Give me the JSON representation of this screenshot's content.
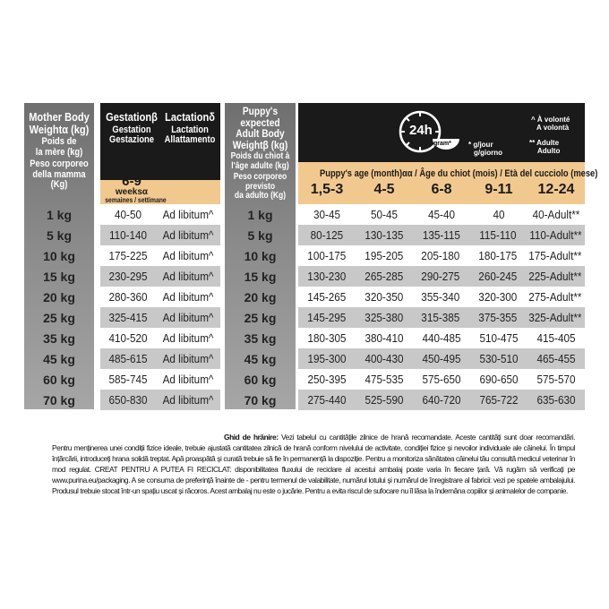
{
  "mother": {
    "title1": "Mother Body",
    "title2": "Weightα (kg)",
    "fr1": "Poids de",
    "fr2": "la mère (kg)",
    "it1": "Peso corporeo",
    "it2": "della mamma (Kg)"
  },
  "gestation": {
    "en": "Gestationβ",
    "fr": "Gestation",
    "it": "Gestazione",
    "duration": "6-9",
    "unit": "weeksα",
    "unit_fr_it": "semaines / settimane"
  },
  "lactation": {
    "en": "Lactationδ",
    "fr": "Lactation",
    "it": "Allattamento"
  },
  "puppy": {
    "t1": "Puppy's expected",
    "t2": "Adult Body",
    "t3": "Weightβ (kg)",
    "fr1": "Poids du chiot à",
    "fr2": "l'âge adulte (kg)",
    "it1": "Peso corporeo previsto",
    "it2": "da adulto (Kg)"
  },
  "legend": {
    "clock": "24h",
    "bowl": "gram*",
    "gjour": "* g/jour",
    "ggiorno": "g/giorno",
    "volonte": "^ À volonté",
    "volonta": "A volontà",
    "adulte": "** Adulte",
    "adulto": "Adulto"
  },
  "age_header": "Puppy's age (month)αα / Âge du chiot (mois) / Età del cucciolo (mese)",
  "ages": [
    "1,5-3",
    "4-5",
    "6-8",
    "9-11",
    "12-24"
  ],
  "weights": [
    "1 kg",
    "5 kg",
    "10 kg",
    "15 kg",
    "20 kg",
    "25 kg",
    "35 kg",
    "45 kg",
    "60 kg",
    "70 kg"
  ],
  "mother_rows": [
    [
      "40-50",
      "Ad libitum^"
    ],
    [
      "110-140",
      "Ad libitum^"
    ],
    [
      "175-225",
      "Ad libitum^"
    ],
    [
      "230-295",
      "Ad libitum^"
    ],
    [
      "280-360",
      "Ad libitum^"
    ],
    [
      "325-415",
      "Ad libitum^"
    ],
    [
      "410-520",
      "Ad libitum^"
    ],
    [
      "485-615",
      "Ad libitum^"
    ],
    [
      "585-745",
      "Ad libitum^"
    ],
    [
      "650-830",
      "Ad libitum^"
    ]
  ],
  "puppy_rows": [
    [
      "30-45",
      "50-45",
      "45-40",
      "40",
      "40-Adult**"
    ],
    [
      "80-125",
      "130-135",
      "135-115",
      "115-110",
      "110-Adult**"
    ],
    [
      "100-175",
      "195-205",
      "205-180",
      "180-175",
      "175-Adult**"
    ],
    [
      "130-230",
      "265-285",
      "290-275",
      "260-245",
      "225-Adult**"
    ],
    [
      "145-265",
      "320-350",
      "355-340",
      "320-300",
      "275-Adult**"
    ],
    [
      "145-295",
      "325-380",
      "315-385",
      "375-355",
      "325-Adult**"
    ],
    [
      "180-305",
      "380-410",
      "440-485",
      "510-475",
      "415-405"
    ],
    [
      "195-300",
      "400-430",
      "450-495",
      "530-510",
      "465-455"
    ],
    [
      "250-395",
      "475-535",
      "575-650",
      "690-650",
      "575-570"
    ],
    [
      "275-440",
      "525-590",
      "640-720",
      "765-722",
      "635-630"
    ]
  ],
  "footer": {
    "bold": "Ghid de hrănire:",
    "text": " Vezi tabelul cu cantitățile zilnice de hrană recomandate. Aceste cantități sunt doar recomandări. Pentru menținerea unei condiții fizice ideale, trebuie ajustată cantitatea zilnică de hrană conform nivelului de activitate, condiției fizice și nevoilor individuale ale câinelui. În timpul înțărcării, introduceți hrana solidă treptat. Apă proaspătă și curată trebuie să fie în permanență la dispoziție. Pentru a monitoriza sănătatea câinelui tău consultă medicul veterinar în mod regulat. CREAT PENTRU A PUTEA FI RECICLAT: disponibilitatea fluxului de reciclare al acestui ambalaj poate varia în fiecare țară. Vă rugăm să verificați pe www.purina.eu/packaging. A se consuma de preferință înainte de - pentru termenul de valabilitate, numărul lotului și numărul de înregistrare al fabricii: vezi pe spatele ambalajului. Produsul trebuie stocat într-un spațiu uscat și răcoros. Acest ambalaj nu este o jucărie. Pentru a evita riscul de sufocare nu îl lăsa la îndemâna copiilor și animalelor de companie."
  },
  "colors": {
    "tan": "#f1c98f",
    "black": "#1a1a1a",
    "stripe": "#c8c8c8",
    "gray": "#8a8a8a"
  }
}
